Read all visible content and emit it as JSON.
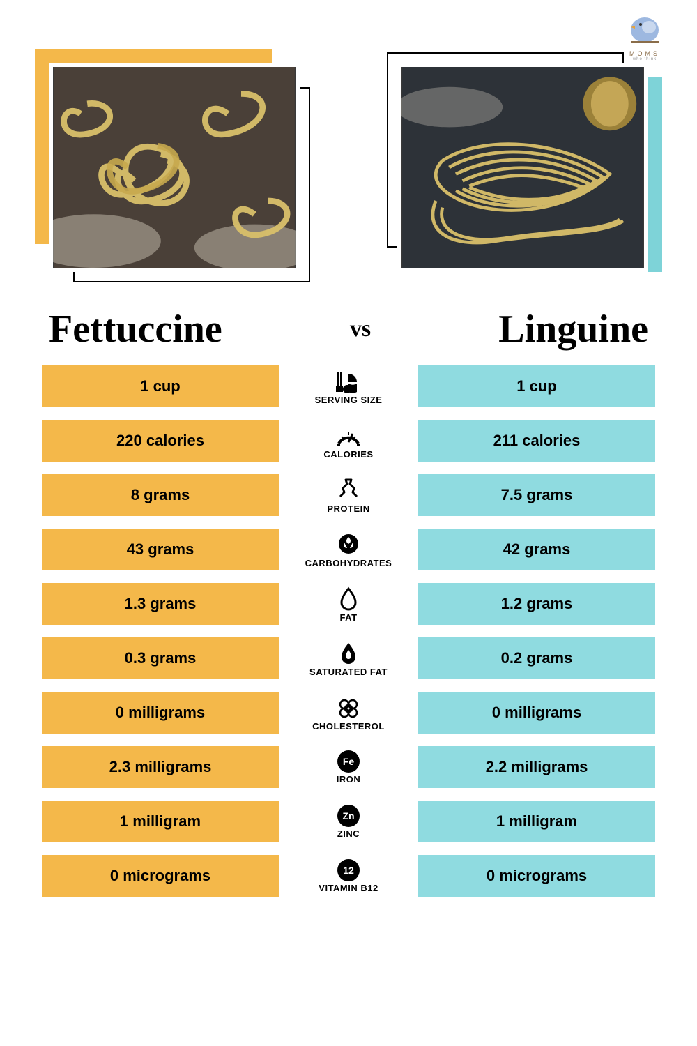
{
  "brand": {
    "name": "MOMS",
    "sub": "who think"
  },
  "colors": {
    "left_accent": "#f4b84a",
    "right_accent": "#7ed3d8",
    "left_cell": "#f4b84a",
    "right_cell": "#8fdbe0",
    "text": "#000000",
    "background": "#ffffff"
  },
  "left": {
    "title": "Fettuccine",
    "image_name": "fettuccine-pasta-photo"
  },
  "right": {
    "title": "Linguine",
    "image_name": "linguine-pasta-photo"
  },
  "vs_label": "vs",
  "typography": {
    "title_fontsize": 56,
    "cell_fontsize": 22,
    "label_fontsize": 13
  },
  "rows": [
    {
      "label": "SERVING SIZE",
      "icon": "serving",
      "left": "1 cup",
      "right": "1 cup"
    },
    {
      "label": "CALORIES",
      "icon": "calories",
      "left": "220 calories",
      "right": "211 calories"
    },
    {
      "label": "PROTEIN",
      "icon": "protein",
      "left": "8 grams",
      "right": "7.5 grams"
    },
    {
      "label": "CARBOHYDRATES",
      "icon": "carbs",
      "left": "43 grams",
      "right": "42 grams"
    },
    {
      "label": "FAT",
      "icon": "fat",
      "left": "1.3 grams",
      "right": "1.2 grams"
    },
    {
      "label": "SATURATED FAT",
      "icon": "satfat",
      "left": "0.3 grams",
      "right": "0.2 grams"
    },
    {
      "label": "CHOLESTEROL",
      "icon": "cholesterol",
      "left": "0 milligrams",
      "right": "0 milligrams"
    },
    {
      "label": "IRON",
      "icon": "iron",
      "left": "2.3 milligrams",
      "right": "2.2 milligrams"
    },
    {
      "label": "ZINC",
      "icon": "zinc",
      "left": "1 milligram",
      "right": "1 milligram"
    },
    {
      "label": "VITAMIN B12",
      "icon": "b12",
      "left": "0 micrograms",
      "right": "0 micrograms"
    }
  ]
}
